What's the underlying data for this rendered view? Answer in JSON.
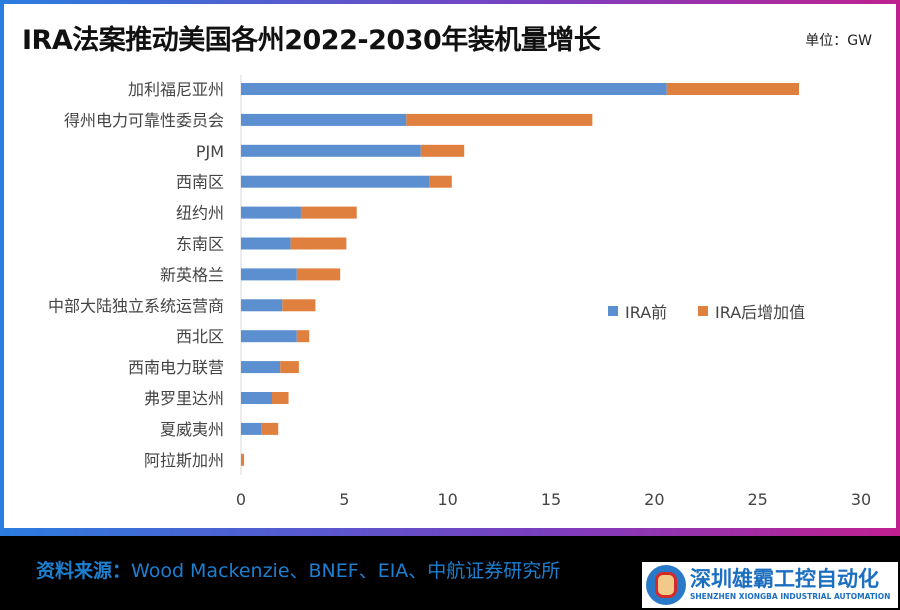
{
  "header": {
    "title": "IRA法案推动美国各州2022-2030年装机量增长",
    "unit": "单位：GW"
  },
  "chart_data": {
    "type": "bar",
    "orientation": "horizontal",
    "stacked": true,
    "title": "IRA法案推动美国各州2022-2030年装机量增长",
    "categories": [
      "加利福尼亚州",
      "得州电力可靠性委员会",
      "PJM",
      "西南区",
      "纽约州",
      "东南区",
      "新英格兰",
      "中部大陆独立系统运营商",
      "西北区",
      "西南电力联营",
      "弗罗里达州",
      "夏威夷州",
      "阿拉斯加州"
    ],
    "series": [
      {
        "name": "IRA前",
        "color": "#5b8fd0",
        "values": [
          20.6,
          8.0,
          8.7,
          9.1,
          2.9,
          2.4,
          2.7,
          2.0,
          2.7,
          1.9,
          1.5,
          1.0,
          0
        ]
      },
      {
        "name": "IRA后增加值",
        "color": "#e0803f",
        "values": [
          6.4,
          9.0,
          2.1,
          1.1,
          2.7,
          2.7,
          2.1,
          1.6,
          0.6,
          0.9,
          0.8,
          0.8,
          0.15
        ]
      }
    ],
    "xlim": [
      0,
      30
    ],
    "xticks": [
      0,
      5,
      10,
      15,
      20,
      25,
      30
    ],
    "grid": false,
    "legend": "right-middle"
  },
  "footer": {
    "source_label": "资料来源：",
    "source_text": "Wood Mackenzie、BNEF、EIA、中航证券研究所"
  },
  "logo": {
    "cn": "深圳雄霸工控自动化",
    "en": "SHENZHEN XIONGBA INDUSTRIAL AUTOMATION"
  }
}
